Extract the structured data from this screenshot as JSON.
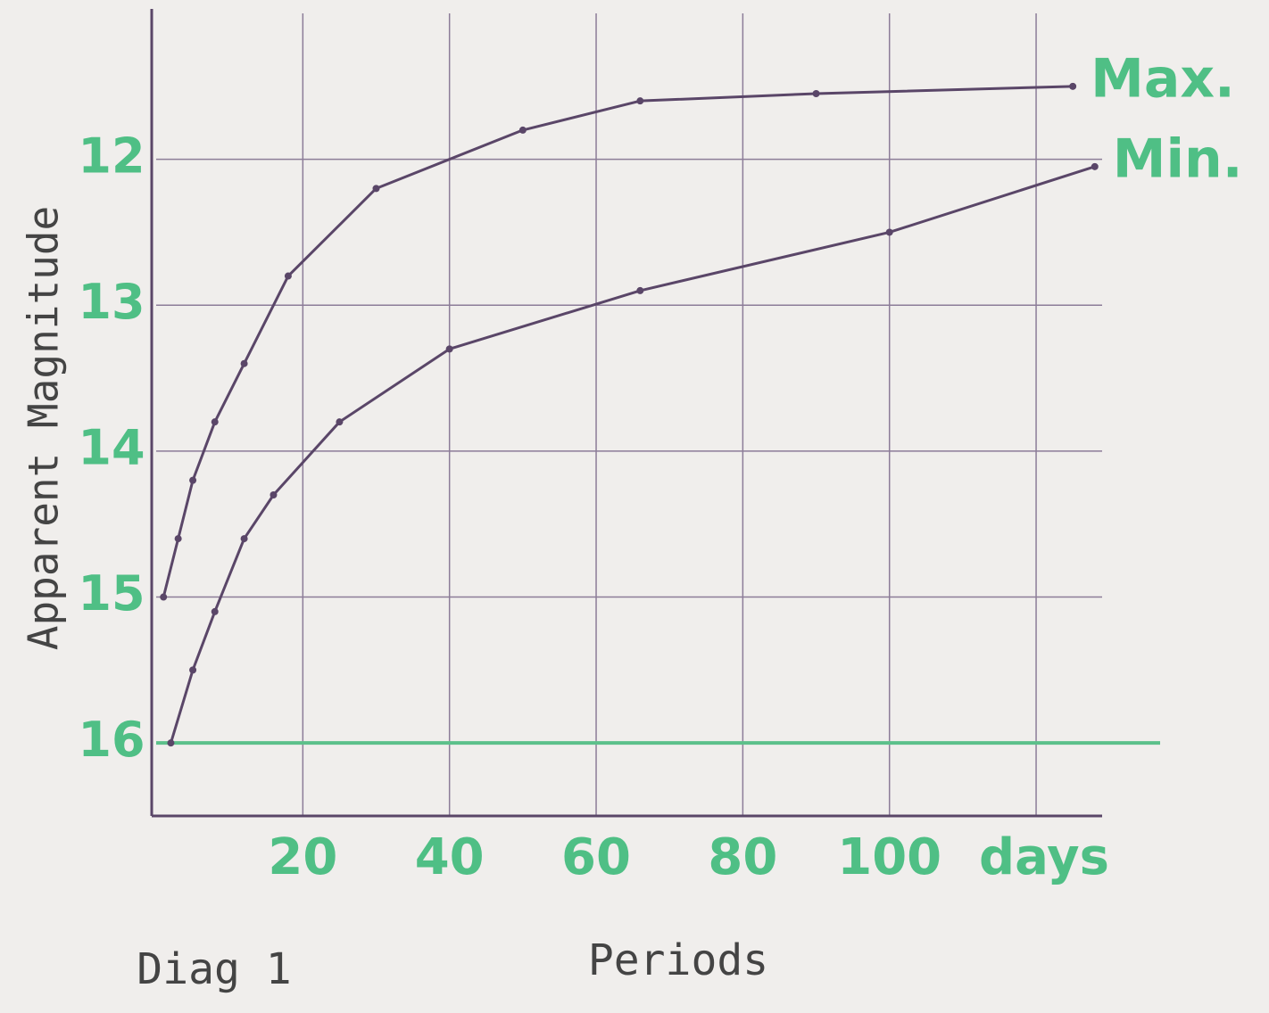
{
  "chart_data": {
    "type": "line",
    "caption": "Diag 1",
    "x_label": "Periods",
    "x_unit": "days",
    "y_label": "Apparent Magnitude",
    "xlim": [
      0,
      129
    ],
    "xticks": [
      20,
      40,
      60,
      80,
      100
    ],
    "xgrid": [
      20,
      40,
      60,
      80,
      100,
      120
    ],
    "ylim": [
      11,
      16.5
    ],
    "y_reversed": true,
    "yticks": [
      12,
      13,
      14,
      15,
      16
    ],
    "highlight_ytick": 16,
    "highlight_color": "#5cc08a",
    "grid": true,
    "series": [
      {
        "name": "Max.",
        "color": "#5a4668",
        "x": [
          1,
          3,
          5,
          8,
          12,
          18,
          30,
          50,
          66,
          90,
          125
        ],
        "values": [
          15,
          14.6,
          14.2,
          13.8,
          13.4,
          12.8,
          12.2,
          11.8,
          11.6,
          11.55,
          11.5
        ]
      },
      {
        "name": "Min.",
        "color": "#5a4668",
        "x": [
          2,
          5,
          8,
          12,
          16,
          25,
          40,
          66,
          100,
          128
        ],
        "values": [
          16,
          15.5,
          15.1,
          14.6,
          14.3,
          13.8,
          13.3,
          12.9,
          12.5,
          12.05
        ]
      }
    ]
  }
}
